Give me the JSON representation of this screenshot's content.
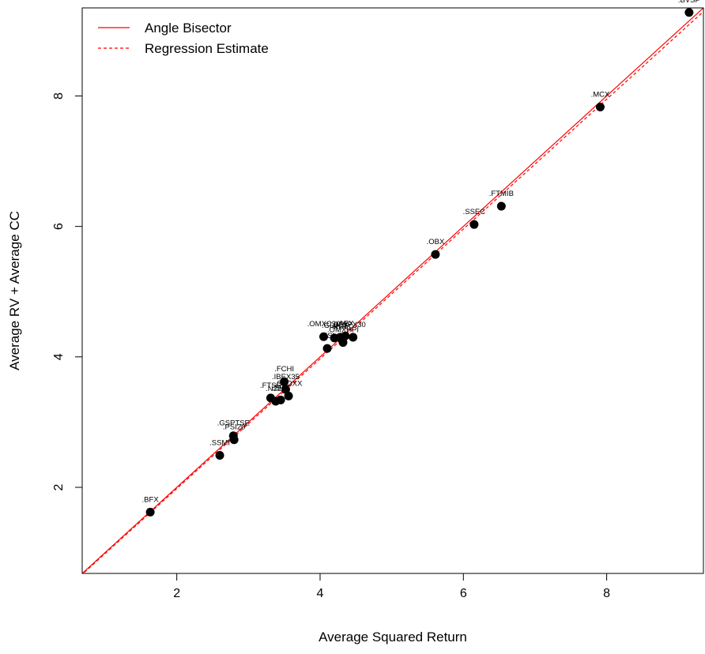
{
  "chart_data": {
    "type": "scatter",
    "title": "",
    "xlabel": "Average Squared Return",
    "ylabel": "Average RV + Average CC",
    "xlim": [
      0.68,
      9.35
    ],
    "ylim": [
      0.68,
      9.35
    ],
    "xticks": [
      2,
      4,
      6,
      8
    ],
    "yticks": [
      2,
      4,
      6,
      8
    ],
    "grid": false,
    "legend_position": "top-left",
    "colors": {
      "lines": "#ff0000",
      "points": "#000000",
      "axes": "#000000"
    },
    "legend": [
      {
        "label": "Angle Bisector",
        "style": "solid"
      },
      {
        "label": "Regression Estimate",
        "style": "dashed"
      }
    ],
    "lines": [
      {
        "name": "Angle Bisector",
        "slope": 1.0,
        "intercept": 0.0,
        "style": "solid"
      },
      {
        "name": "Regression Estimate",
        "slope": 0.995,
        "intercept": -0.01,
        "style": "dashed"
      }
    ],
    "points": [
      {
        "label": ".BVSP",
        "x": 9.15,
        "y": 9.28
      },
      {
        "label": ".MCX",
        "x": 7.91,
        "y": 7.83
      },
      {
        "label": ".FTMIB",
        "x": 6.53,
        "y": 6.31
      },
      {
        "label": ".SSEC",
        "x": 6.15,
        "y": 6.03
      },
      {
        "label": ".OBX",
        "x": 5.61,
        "y": 5.57
      },
      {
        "label": ".OMXC20",
        "x": 4.05,
        "y": 4.31
      },
      {
        "label": ".GDAXI",
        "x": 4.2,
        "y": 4.29
      },
      {
        "label": ".BFX",
        "x": 4.28,
        "y": 4.3
      },
      {
        "label": ".AEX",
        "x": 4.35,
        "y": 4.32
      },
      {
        "label": ".KS11",
        "x": 4.3,
        "y": 4.27
      },
      {
        "label": ".SPX30",
        "x": 4.46,
        "y": 4.3
      },
      {
        "label": ".OMXHPI",
        "x": 4.32,
        "y": 4.22
      },
      {
        "label": ".HSI",
        "x": 4.1,
        "y": 4.13
      },
      {
        "label": ".FCHI",
        "x": 3.5,
        "y": 3.62
      },
      {
        "label": ".IBEX35",
        "x": 3.52,
        "y": 3.5
      },
      {
        "label": ".FTSE",
        "x": 3.31,
        "y": 3.37
      },
      {
        "label": ".SPX",
        "x": 3.45,
        "y": 3.34
      },
      {
        "label": ".N225",
        "x": 3.38,
        "y": 3.32
      },
      {
        "label": ".STOXX",
        "x": 3.56,
        "y": 3.4
      },
      {
        "label": ".GSPTSE",
        "x": 2.79,
        "y": 2.79
      },
      {
        "label": ".PSI20",
        "x": 2.8,
        "y": 2.73
      },
      {
        "label": ".SSMI",
        "x": 2.6,
        "y": 2.49
      },
      {
        "label": ".BFX",
        "x": 1.63,
        "y": 1.62
      }
    ]
  }
}
